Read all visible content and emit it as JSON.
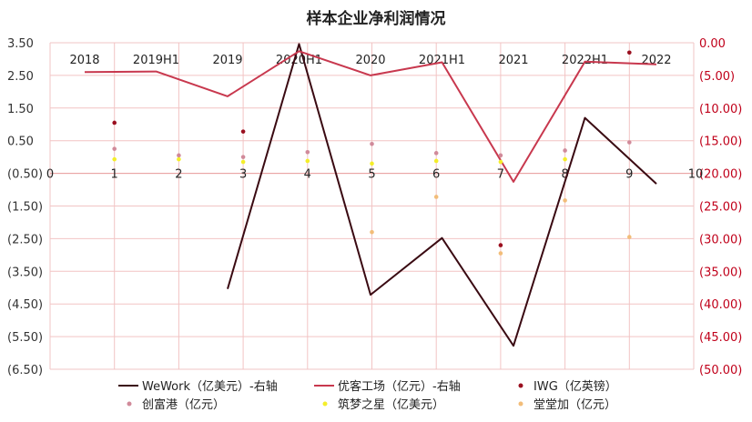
{
  "chart_data": {
    "type": "line",
    "title": "样本企业净利润情况",
    "categories": [
      "2018",
      "2019H1",
      "2019",
      "2020H1",
      "2020",
      "2021H1",
      "2021",
      "2022H1",
      "2022"
    ],
    "x_axis_ticks": [
      "0",
      "1",
      "2",
      "3",
      "4",
      "5",
      "6",
      "7",
      "8",
      "9",
      "10"
    ],
    "left_axis": {
      "ticks": [
        "3.50",
        "2.50",
        "1.50",
        "0.50",
        "(0.50)",
        "(1.50)",
        "(2.50)",
        "(3.50)",
        "(4.50)",
        "(5.50)",
        "(6.50)"
      ],
      "ylim": [
        -6.5,
        3.5
      ]
    },
    "right_axis": {
      "ticks": [
        "0.00",
        "(5.00)",
        "(10.00)",
        "(15.00)",
        "(20.00)",
        "(25.00)",
        "(30.00)",
        "(35.00)",
        "(40.00)",
        "(45.00)",
        "(50.00)"
      ],
      "ylim": [
        -50,
        0
      ]
    },
    "grid": true,
    "legend_position": "bottom",
    "series": [
      {
        "name": "WeWork（亿美元）-右轴",
        "type": "line",
        "axis": "right",
        "color": "#3a0a12",
        "values": [
          null,
          null,
          -37.7,
          -0.2,
          -38.6,
          -29.9,
          -46.4,
          -11.5,
          -21.6
        ]
      },
      {
        "name": "优客工场（亿元）-右轴",
        "type": "line",
        "axis": "right",
        "color": "#c8384e",
        "values": [
          -4.5,
          -4.4,
          -8.2,
          -1.3,
          -5.0,
          -3.0,
          -21.3,
          -2.9,
          -3.3
        ]
      },
      {
        "name": "IWG（亿英镑）",
        "type": "scatter",
        "axis": "left",
        "color": "#9a0f1f",
        "x": [
          1,
          3,
          7,
          9
        ],
        "values": [
          1.05,
          0.78,
          -2.7,
          3.2
        ]
      },
      {
        "name": "创富港（亿元）",
        "type": "scatter",
        "axis": "left",
        "color": "#d18a9a",
        "x": [
          1,
          2,
          3,
          4,
          5,
          6,
          7,
          8,
          9
        ],
        "values": [
          0.25,
          0.05,
          0.0,
          0.15,
          0.4,
          0.12,
          0.05,
          0.2,
          0.45
        ]
      },
      {
        "name": "筑梦之星（亿美元）",
        "type": "scatter",
        "axis": "left",
        "color": "#f4ee2a",
        "x": [
          1,
          2,
          3,
          4,
          5,
          6,
          7,
          8
        ],
        "values": [
          -0.07,
          -0.07,
          -0.15,
          -0.12,
          -0.2,
          -0.12,
          -0.15,
          -0.07
        ]
      },
      {
        "name": "堂堂加（亿元）",
        "type": "scatter",
        "axis": "left",
        "color": "#f2bd79",
        "x": [
          5,
          6,
          7,
          8,
          9
        ],
        "values": [
          -2.3,
          -1.22,
          -2.95,
          -1.33,
          -2.45
        ]
      }
    ]
  }
}
